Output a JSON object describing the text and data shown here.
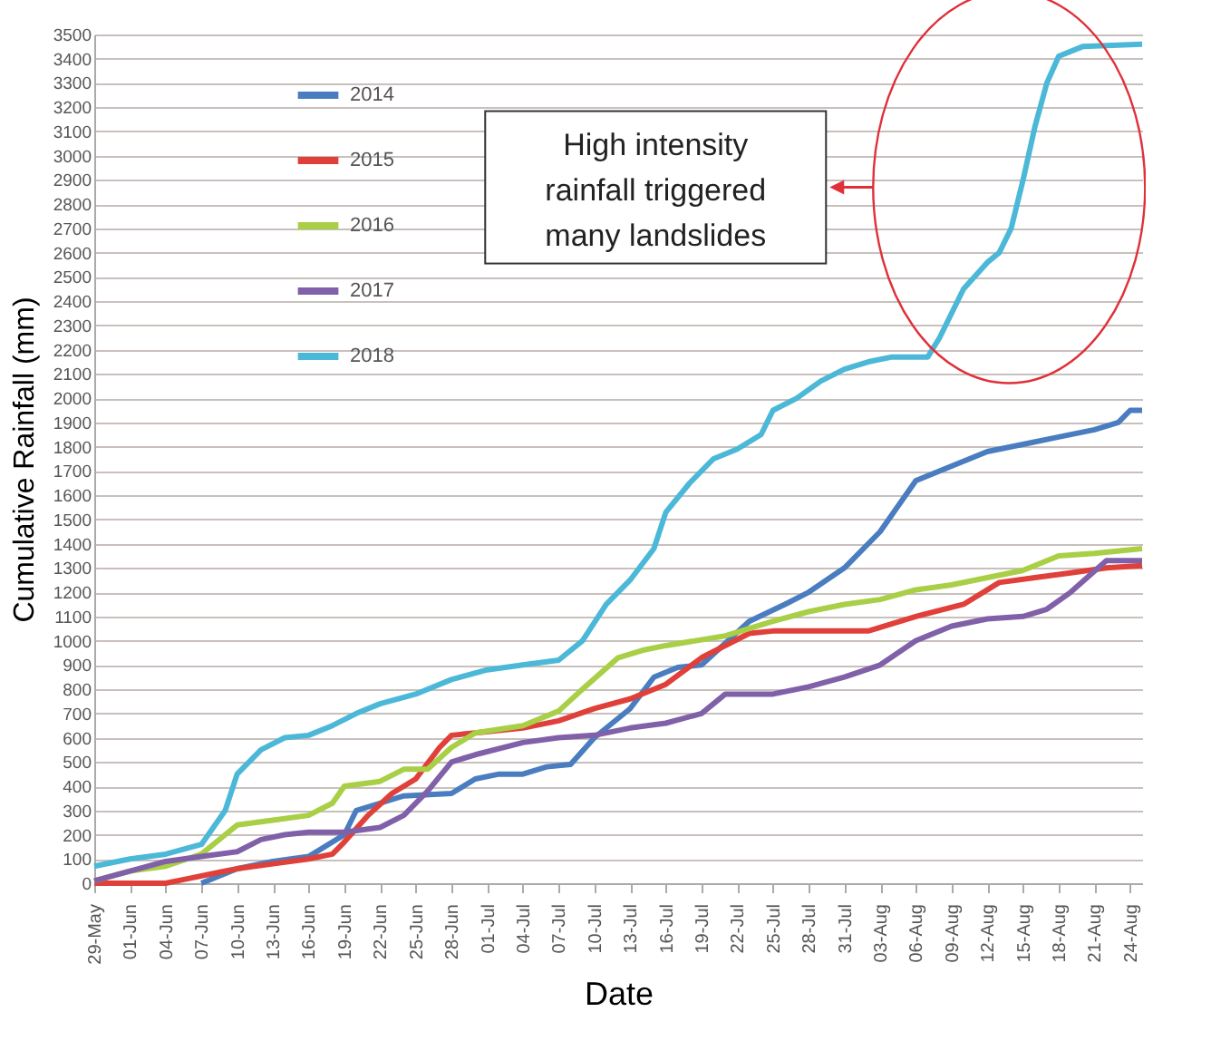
{
  "chart_data": {
    "type": "line",
    "xlabel": "Date",
    "ylabel": "Cumulative Rainfall (mm)",
    "xlim": [
      "--05-29",
      "--08-25"
    ],
    "ylim": [
      0,
      3500
    ],
    "yticks": [
      0,
      100,
      200,
      300,
      400,
      500,
      600,
      700,
      800,
      900,
      1000,
      1100,
      1200,
      1300,
      1400,
      1500,
      1600,
      1700,
      1800,
      1900,
      2000,
      2100,
      2200,
      2300,
      2400,
      2500,
      2600,
      2700,
      2800,
      2900,
      3000,
      3100,
      3200,
      3300,
      3400,
      3500
    ],
    "xticks": [
      {
        "value": "--05-29",
        "label": "29-May"
      },
      {
        "value": "--06-01",
        "label": "01-Jun"
      },
      {
        "value": "--06-04",
        "label": "04-Jun"
      },
      {
        "value": "--06-07",
        "label": "07-Jun"
      },
      {
        "value": "--06-10",
        "label": "10-Jun"
      },
      {
        "value": "--06-13",
        "label": "13-Jun"
      },
      {
        "value": "--06-16",
        "label": "16-Jun"
      },
      {
        "value": "--06-19",
        "label": "19-Jun"
      },
      {
        "value": "--06-22",
        "label": "22-Jun"
      },
      {
        "value": "--06-25",
        "label": "25-Jun"
      },
      {
        "value": "--06-28",
        "label": "28-Jun"
      },
      {
        "value": "--07-01",
        "label": "01-Jul"
      },
      {
        "value": "--07-04",
        "label": "04-Jul"
      },
      {
        "value": "--07-07",
        "label": "07-Jul"
      },
      {
        "value": "--07-10",
        "label": "10-Jul"
      },
      {
        "value": "--07-13",
        "label": "13-Jul"
      },
      {
        "value": "--07-16",
        "label": "16-Jul"
      },
      {
        "value": "--07-19",
        "label": "19-Jul"
      },
      {
        "value": "--07-22",
        "label": "22-Jul"
      },
      {
        "value": "--07-25",
        "label": "25-Jul"
      },
      {
        "value": "--07-28",
        "label": "28-Jul"
      },
      {
        "value": "--07-31",
        "label": "31-Jul"
      },
      {
        "value": "--08-03",
        "label": "03-Aug"
      },
      {
        "value": "--08-06",
        "label": "06-Aug"
      },
      {
        "value": "--08-09",
        "label": "09-Aug"
      },
      {
        "value": "--08-12",
        "label": "12-Aug"
      },
      {
        "value": "--08-15",
        "label": "15-Aug"
      },
      {
        "value": "--08-18",
        "label": "18-Aug"
      },
      {
        "value": "--08-21",
        "label": "21-Aug"
      },
      {
        "value": "--08-24",
        "label": "24-Aug"
      }
    ],
    "grid": "y",
    "legend": "top left",
    "annotations": [
      "High intensity rainfall triggered many landslides"
    ],
    "series": [
      {
        "name": "2014",
        "color": "#4a7dc0",
        "x": [
          "--06-07",
          "--06-10",
          "--06-13",
          "--06-16",
          "--06-19",
          "--06-20",
          "--06-22",
          "--06-24",
          "--06-28",
          "--06-30",
          "--07-02",
          "--07-04",
          "--07-06",
          "--07-08",
          "--07-10",
          "--07-13",
          "--07-15",
          "--07-17",
          "--07-19",
          "--07-23",
          "--07-26",
          "--07-28",
          "--07-31",
          "--08-03",
          "--08-06",
          "--08-09",
          "--08-12",
          "--08-15",
          "--08-18",
          "--08-21",
          "--08-23",
          "--08-24",
          "--08-25"
        ],
        "values": [
          0,
          60,
          90,
          110,
          200,
          300,
          330,
          360,
          370,
          430,
          450,
          450,
          480,
          490,
          600,
          720,
          850,
          890,
          900,
          1080,
          1150,
          1200,
          1300,
          1450,
          1660,
          1720,
          1780,
          1810,
          1840,
          1870,
          1900,
          1950,
          1950
        ]
      },
      {
        "name": "2015",
        "color": "#e0403a",
        "x": [
          "--05-29",
          "--06-01",
          "--06-04",
          "--06-06",
          "--06-08",
          "--06-10",
          "--06-13",
          "--06-16",
          "--06-18",
          "--06-19",
          "--06-21",
          "--06-23",
          "--06-25",
          "--06-27",
          "--06-28",
          "--06-30",
          "--07-04",
          "--07-07",
          "--07-10",
          "--07-13",
          "--07-16",
          "--07-19",
          "--07-23",
          "--07-25",
          "--08-02",
          "--08-06",
          "--08-10",
          "--08-13",
          "--08-16",
          "--08-19",
          "--08-22",
          "--08-25"
        ],
        "values": [
          0,
          0,
          0,
          20,
          40,
          60,
          80,
          100,
          120,
          170,
          280,
          370,
          430,
          560,
          610,
          620,
          640,
          670,
          720,
          760,
          820,
          930,
          1030,
          1040,
          1040,
          1100,
          1150,
          1240,
          1260,
          1280,
          1300,
          1310
        ]
      },
      {
        "name": "2016",
        "color": "#a8cf45",
        "x": [
          "--05-29",
          "--06-01",
          "--06-04",
          "--06-07",
          "--06-09",
          "--06-10",
          "--06-13",
          "--06-16",
          "--06-18",
          "--06-19",
          "--06-22",
          "--06-24",
          "--06-26",
          "--06-28",
          "--06-30",
          "--07-04",
          "--07-07",
          "--07-09",
          "--07-12",
          "--07-14",
          "--07-16",
          "--07-21",
          "--07-25",
          "--07-28",
          "--07-31",
          "--08-03",
          "--08-06",
          "--08-09",
          "--08-12",
          "--08-15",
          "--08-18",
          "--08-21",
          "--08-25"
        ],
        "values": [
          10,
          50,
          70,
          120,
          200,
          240,
          260,
          280,
          330,
          400,
          420,
          470,
          470,
          560,
          620,
          650,
          710,
          800,
          930,
          960,
          980,
          1020,
          1080,
          1120,
          1150,
          1170,
          1210,
          1230,
          1260,
          1290,
          1350,
          1360,
          1380
        ]
      },
      {
        "name": "2017",
        "color": "#8060a8",
        "x": [
          "--05-29",
          "--06-01",
          "--06-04",
          "--06-07",
          "--06-10",
          "--06-12",
          "--06-14",
          "--06-16",
          "--06-19",
          "--06-22",
          "--06-24",
          "--06-26",
          "--06-28",
          "--06-30",
          "--07-04",
          "--07-07",
          "--07-10",
          "--07-13",
          "--07-16",
          "--07-19",
          "--07-21",
          "--07-25",
          "--07-28",
          "--07-31",
          "--08-03",
          "--08-06",
          "--08-09",
          "--08-12",
          "--08-15",
          "--08-17",
          "--08-19",
          "--08-22",
          "--08-25"
        ],
        "values": [
          10,
          50,
          90,
          110,
          130,
          180,
          200,
          210,
          210,
          230,
          280,
          380,
          500,
          530,
          580,
          600,
          610,
          640,
          660,
          700,
          780,
          780,
          810,
          850,
          900,
          1000,
          1060,
          1090,
          1100,
          1130,
          1200,
          1330,
          1330
        ]
      },
      {
        "name": "2018",
        "color": "#4bb8d8",
        "x": [
          "--05-29",
          "--06-01",
          "--06-04",
          "--06-07",
          "--06-09",
          "--06-10",
          "--06-12",
          "--06-14",
          "--06-16",
          "--06-18",
          "--06-20",
          "--06-22",
          "--06-25",
          "--06-28",
          "--07-01",
          "--07-04",
          "--07-07",
          "--07-09",
          "--07-11",
          "--07-13",
          "--07-15",
          "--07-16",
          "--07-18",
          "--07-20",
          "--07-22",
          "--07-24",
          "--07-25",
          "--07-27",
          "--07-29",
          "--07-31",
          "--08-02",
          "--08-04",
          "--08-07",
          "--08-08",
          "--08-10",
          "--08-12",
          "--08-13",
          "--08-14",
          "--08-15",
          "--08-16",
          "--08-17",
          "--08-18",
          "--08-20",
          "--08-25"
        ],
        "values": [
          70,
          100,
          120,
          160,
          300,
          450,
          550,
          600,
          610,
          650,
          700,
          740,
          780,
          840,
          880,
          900,
          920,
          1000,
          1150,
          1250,
          1380,
          1530,
          1650,
          1750,
          1790,
          1850,
          1950,
          2000,
          2070,
          2120,
          2150,
          2170,
          2170,
          2250,
          2450,
          2560,
          2600,
          2700,
          2900,
          3120,
          3300,
          3410,
          3450,
          3460
        ]
      }
    ]
  }
}
